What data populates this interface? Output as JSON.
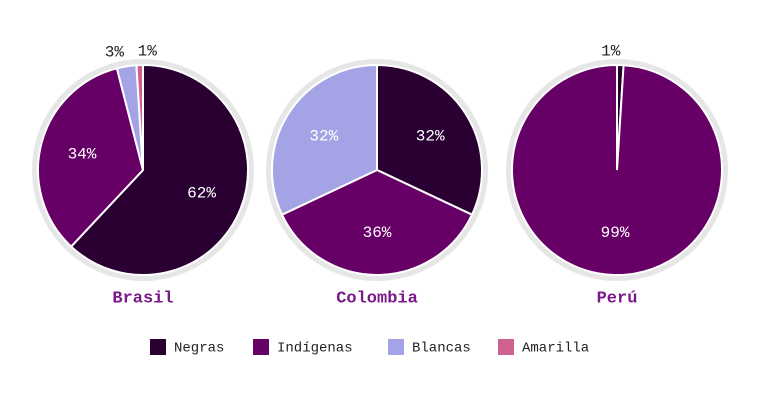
{
  "chart_data": [
    {
      "type": "pie",
      "title": "Brasil",
      "categories": [
        "Negras",
        "Indígenas",
        "Blancas",
        "Amarilla"
      ],
      "values": [
        62,
        34,
        3,
        1
      ],
      "value_labels": [
        "62%",
        "34%",
        "3%",
        "1%"
      ],
      "colors": [
        "#2a0033",
        "#660066",
        "#a3a3e6",
        "#d0608f"
      ]
    },
    {
      "type": "pie",
      "title": "Colombia",
      "categories": [
        "Negras",
        "Indígenas",
        "Blancas"
      ],
      "values": [
        32,
        36,
        32
      ],
      "value_labels": [
        "32%",
        "36%",
        "32%"
      ],
      "colors": [
        "#2a0033",
        "#660066",
        "#a3a3e6"
      ]
    },
    {
      "type": "pie",
      "title": "Perú",
      "categories": [
        "Negras",
        "Indígenas"
      ],
      "values": [
        1,
        99
      ],
      "value_labels": [
        "1%",
        "99%"
      ],
      "colors": [
        "#2a0033",
        "#660066"
      ]
    }
  ],
  "legend": {
    "items": [
      {
        "name": "Negras",
        "color": "#2a0033"
      },
      {
        "name": "Indígenas",
        "color": "#660066"
      },
      {
        "name": "Blancas",
        "color": "#a3a3e6"
      },
      {
        "name": "Amarilla",
        "color": "#d0608f"
      }
    ]
  }
}
